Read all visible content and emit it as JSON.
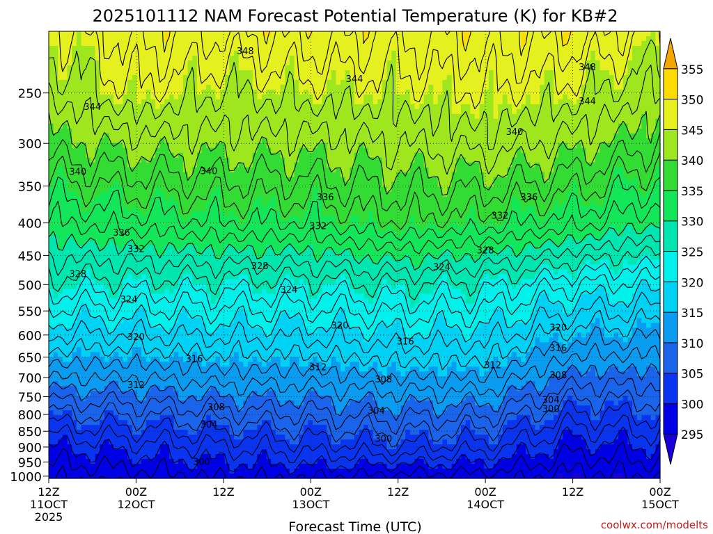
{
  "chart_data": {
    "type": "heatmap",
    "title": "2025101112 NAM Forecast Potential Temperature (K) for KB#2",
    "xlabel": "Forecast Time (UTC)",
    "ylabel": "",
    "credit": "coolwx.com/modelts",
    "y_scale": "log-pressure",
    "ylim": [
      1000,
      200
    ],
    "y_ticks": [
      250,
      300,
      350,
      400,
      450,
      500,
      550,
      600,
      650,
      700,
      750,
      800,
      850,
      900,
      950,
      1000
    ],
    "x_ticks": [
      {
        "hours": 0,
        "time": "12Z",
        "date": "11OCT",
        "year": "2025"
      },
      {
        "hours": 12,
        "time": "00Z",
        "date": "12OCT",
        "year": ""
      },
      {
        "hours": 24,
        "time": "12Z",
        "date": "",
        "year": ""
      },
      {
        "hours": 36,
        "time": "00Z",
        "date": "13OCT",
        "year": ""
      },
      {
        "hours": 48,
        "time": "12Z",
        "date": "",
        "year": ""
      },
      {
        "hours": 60,
        "time": "00Z",
        "date": "14OCT",
        "year": ""
      },
      {
        "hours": 72,
        "time": "12Z",
        "date": "",
        "year": ""
      },
      {
        "hours": 84,
        "time": "00Z",
        "date": "15OCT",
        "year": ""
      }
    ],
    "colorbar": {
      "ticks": [
        295,
        300,
        305,
        310,
        315,
        320,
        325,
        330,
        335,
        340,
        345,
        350,
        355
      ],
      "bands": [
        {
          "from": 290,
          "to": 295,
          "color": "#1a00d8"
        },
        {
          "from": 295,
          "to": 300,
          "color": "#0000e6"
        },
        {
          "from": 300,
          "to": 305,
          "color": "#0a35f0"
        },
        {
          "from": 305,
          "to": 310,
          "color": "#1a64ec"
        },
        {
          "from": 310,
          "to": 315,
          "color": "#0a9cf0"
        },
        {
          "from": 315,
          "to": 320,
          "color": "#00d2f5"
        },
        {
          "from": 320,
          "to": 325,
          "color": "#00f0ec"
        },
        {
          "from": 325,
          "to": 330,
          "color": "#00e6b0"
        },
        {
          "from": 330,
          "to": 335,
          "color": "#14e65a"
        },
        {
          "from": 335,
          "to": 340,
          "color": "#32dc32"
        },
        {
          "from": 340,
          "to": 345,
          "color": "#9ee61e"
        },
        {
          "from": 345,
          "to": 350,
          "color": "#e6f01e"
        },
        {
          "from": 350,
          "to": 355,
          "color": "#ffdc00"
        },
        {
          "from": 355,
          "to": 360,
          "color": "#f5a500"
        }
      ]
    },
    "ground_color": "#a0522d",
    "surface_pressure": 1008,
    "contour_levels": [
      296,
      298,
      300,
      302,
      304,
      306,
      308,
      310,
      312,
      314,
      316,
      318,
      320,
      322,
      324,
      326,
      328,
      330,
      332,
      334,
      336,
      338,
      340,
      342,
      344,
      346,
      348,
      350
    ],
    "profiles": [
      {
        "hours": 0,
        "pressure": [
          1008,
          900,
          700,
          500,
          400,
          300,
          250,
          200
        ],
        "theta": [
          296,
          300,
          312,
          325,
          332,
          339,
          342,
          345
        ]
      },
      {
        "hours": 12,
        "pressure": [
          1008,
          900,
          700,
          500,
          400,
          300,
          250,
          200
        ],
        "theta": [
          297,
          301,
          312,
          325,
          333,
          341,
          346,
          349
        ]
      },
      {
        "hours": 24,
        "pressure": [
          1008,
          900,
          700,
          500,
          400,
          300,
          250,
          200
        ],
        "theta": [
          298,
          302,
          313,
          325,
          334,
          341,
          344,
          348
        ]
      },
      {
        "hours": 36,
        "pressure": [
          1008,
          900,
          700,
          500,
          400,
          300,
          250,
          200
        ],
        "theta": [
          298,
          303,
          313,
          325,
          334,
          341,
          345,
          349
        ]
      },
      {
        "hours": 48,
        "pressure": [
          1008,
          900,
          700,
          500,
          400,
          300,
          250,
          200
        ],
        "theta": [
          297,
          304,
          314,
          326,
          336,
          342,
          345,
          348
        ]
      },
      {
        "hours": 60,
        "pressure": [
          1008,
          900,
          700,
          500,
          400,
          300,
          250,
          200
        ],
        "theta": [
          297,
          303,
          314,
          325,
          335,
          343,
          346,
          349
        ]
      },
      {
        "hours": 72,
        "pressure": [
          1008,
          900,
          700,
          500,
          400,
          300,
          250,
          200
        ],
        "theta": [
          295,
          299,
          309,
          322,
          333,
          341,
          345,
          349
        ]
      },
      {
        "hours": 84,
        "pressure": [
          1008,
          900,
          700,
          500,
          400,
          300,
          250,
          200
        ],
        "theta": [
          296,
          300,
          309,
          321,
          330,
          338,
          342,
          346
        ]
      }
    ],
    "contour_labels": [
      {
        "hours": 27,
        "pressure": 215,
        "text": "348"
      },
      {
        "hours": 74,
        "pressure": 228,
        "text": "348"
      },
      {
        "hours": 6,
        "pressure": 263,
        "text": "344"
      },
      {
        "hours": 42,
        "pressure": 238,
        "text": "344"
      },
      {
        "hours": 74,
        "pressure": 258,
        "text": "344"
      },
      {
        "hours": 4,
        "pressure": 333,
        "text": "340"
      },
      {
        "hours": 22,
        "pressure": 332,
        "text": "340"
      },
      {
        "hours": 64,
        "pressure": 288,
        "text": "340"
      },
      {
        "hours": 10,
        "pressure": 415,
        "text": "336"
      },
      {
        "hours": 38,
        "pressure": 365,
        "text": "336"
      },
      {
        "hours": 66,
        "pressure": 365,
        "text": "336"
      },
      {
        "hours": 12,
        "pressure": 440,
        "text": "332"
      },
      {
        "hours": 37,
        "pressure": 405,
        "text": "332"
      },
      {
        "hours": 62,
        "pressure": 390,
        "text": "332"
      },
      {
        "hours": 4,
        "pressure": 482,
        "text": "328"
      },
      {
        "hours": 29,
        "pressure": 468,
        "text": "328"
      },
      {
        "hours": 60,
        "pressure": 442,
        "text": "328"
      },
      {
        "hours": 11,
        "pressure": 528,
        "text": "324"
      },
      {
        "hours": 33,
        "pressure": 510,
        "text": "324"
      },
      {
        "hours": 54,
        "pressure": 470,
        "text": "324"
      },
      {
        "hours": 12,
        "pressure": 605,
        "text": "320"
      },
      {
        "hours": 40,
        "pressure": 580,
        "text": "320"
      },
      {
        "hours": 70,
        "pressure": 585,
        "text": "320"
      },
      {
        "hours": 20,
        "pressure": 655,
        "text": "316"
      },
      {
        "hours": 49,
        "pressure": 615,
        "text": "316"
      },
      {
        "hours": 70,
        "pressure": 630,
        "text": "316"
      },
      {
        "hours": 12,
        "pressure": 720,
        "text": "312"
      },
      {
        "hours": 37,
        "pressure": 675,
        "text": "312"
      },
      {
        "hours": 61,
        "pressure": 670,
        "text": "312"
      },
      {
        "hours": 46,
        "pressure": 705,
        "text": "308"
      },
      {
        "hours": 70,
        "pressure": 695,
        "text": "308"
      },
      {
        "hours": 23,
        "pressure": 780,
        "text": "308"
      },
      {
        "hours": 22,
        "pressure": 830,
        "text": "304"
      },
      {
        "hours": 45,
        "pressure": 790,
        "text": "304"
      },
      {
        "hours": 69,
        "pressure": 760,
        "text": "304"
      },
      {
        "hours": 21,
        "pressure": 950,
        "text": "300"
      },
      {
        "hours": 46,
        "pressure": 875,
        "text": "300"
      },
      {
        "hours": 69,
        "pressure": 785,
        "text": "300"
      }
    ]
  }
}
